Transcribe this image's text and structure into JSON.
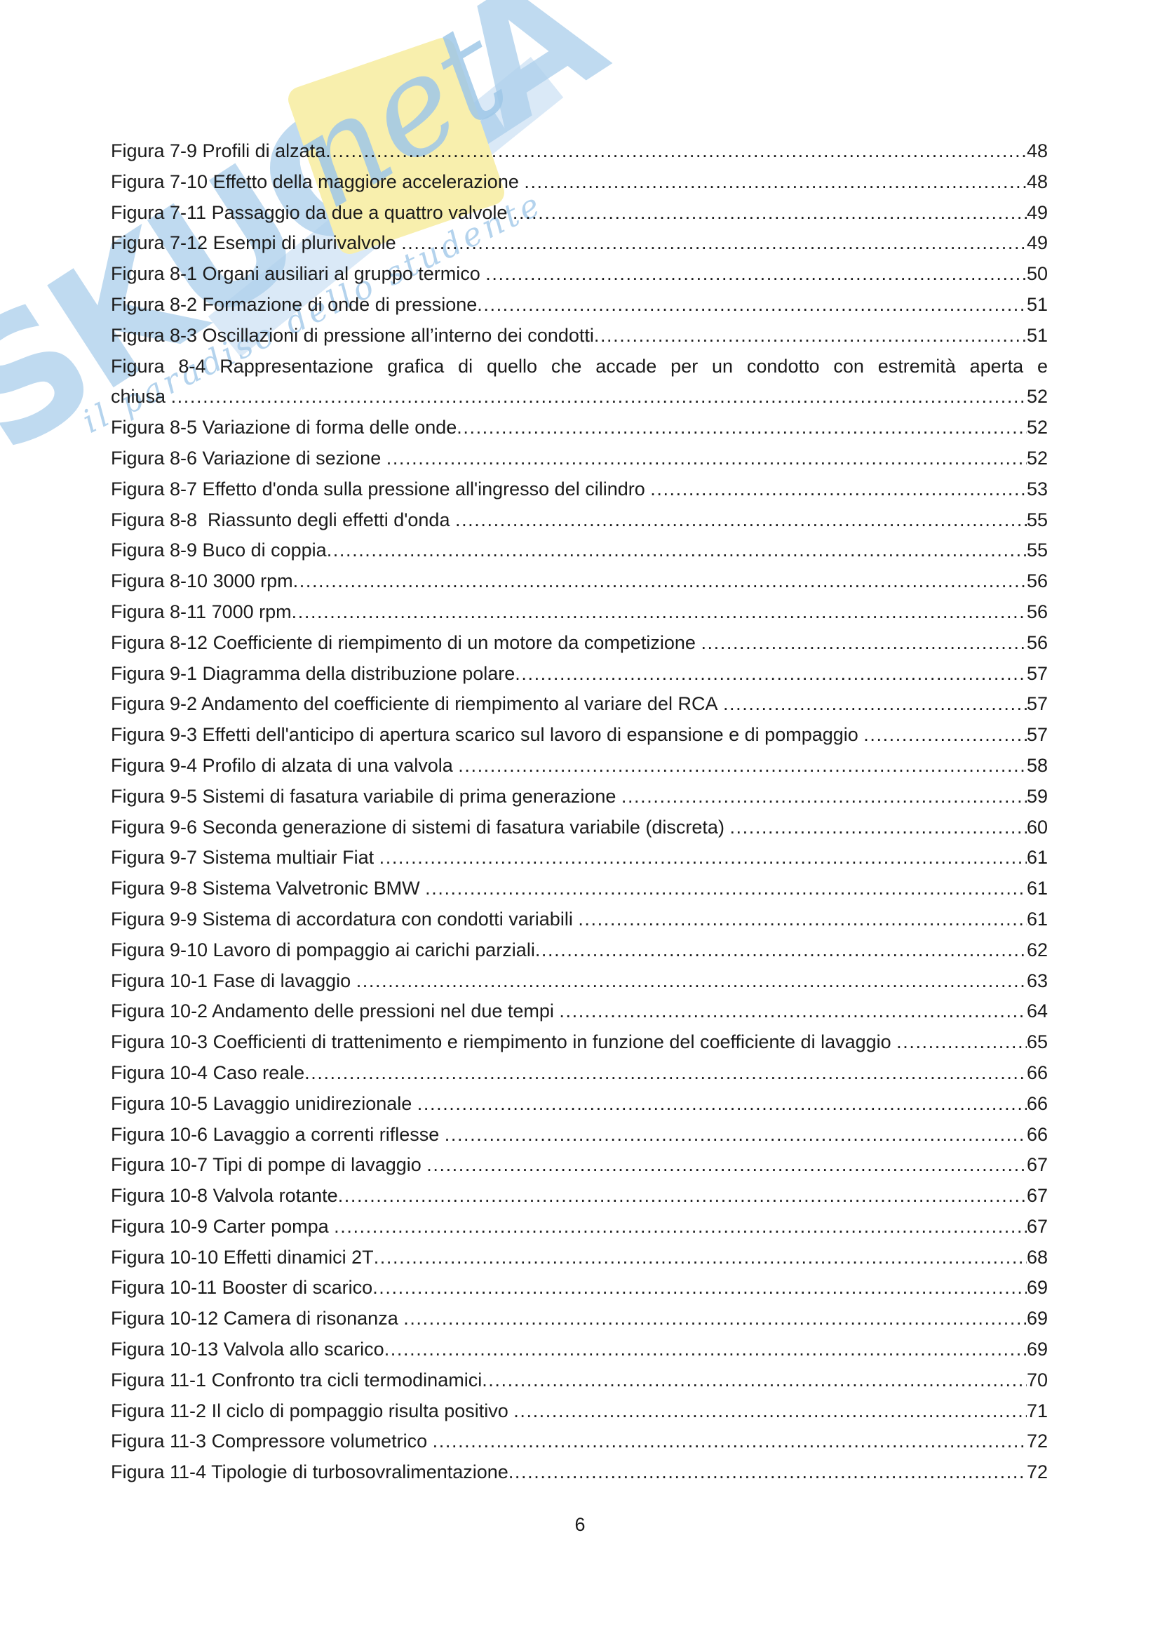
{
  "page": {
    "footer_number": "6"
  },
  "watermark": {
    "brand_main": "SKUOLA",
    "brand_suffix": "net",
    "tagline": "il paradiso dello studente",
    "blue": "#aed0ec",
    "yellow": "#f8efad"
  },
  "toc": {
    "entries": [
      {
        "label": "Figura 7-9 Profili di alzata",
        "page": "48"
      },
      {
        "label": "Figura 7-10 Effetto della maggiore accelerazione ",
        "page": "48"
      },
      {
        "label": "Figura 7-11 Passaggio da due a quattro valvole ",
        "page": "49"
      },
      {
        "label": "Figura 7-12 Esempi di plurivalvole ",
        "page": "49"
      },
      {
        "label": "Figura 8-1 Organi ausiliari al gruppo termico ",
        "page": "50"
      },
      {
        "label": "Figura 8-2 Formazione di onde di pressione",
        "page": "51"
      },
      {
        "label": "Figura 8-3 Oscillazioni di pressione all’interno dei condotti",
        "page": "51"
      },
      {
        "line1": "Figura 8-4 Rappresentazione grafica di quello che accade per un condotto con estremità aperta e",
        "label": "chiusa ",
        "page": "52"
      },
      {
        "label": "Figura 8-5 Variazione di forma delle onde",
        "page": "52"
      },
      {
        "label": "Figura 8-6 Variazione di sezione ",
        "page": "52"
      },
      {
        "label": "Figura 8-7 Effetto d'onda sulla pressione all'ingresso del cilindro ",
        "page": "53"
      },
      {
        "label": "Figura 8-8  Riassunto degli effetti d'onda ",
        "page": "55"
      },
      {
        "label": "Figura 8-9 Buco di coppia",
        "page": "55"
      },
      {
        "label": "Figura 8-10 3000 rpm",
        "page": "56"
      },
      {
        "label": "Figura 8-11 7000 rpm",
        "page": "56"
      },
      {
        "label": "Figura 8-12 Coefficiente di riempimento di un motore da competizione ",
        "page": "56"
      },
      {
        "label": "Figura 9-1 Diagramma della distribuzione polare",
        "page": "57"
      },
      {
        "label": "Figura 9-2 Andamento del coefficiente di riempimento al variare del RCA ",
        "page": "57"
      },
      {
        "label": "Figura 9-3 Effetti dell'anticipo di apertura scarico sul lavoro di espansione e di pompaggio ",
        "page": "57"
      },
      {
        "label": "Figura 9-4 Profilo di alzata di una valvola ",
        "page": "58"
      },
      {
        "label": "Figura 9-5 Sistemi di fasatura variabile di prima generazione ",
        "page": "59"
      },
      {
        "label": "Figura 9-6 Seconda generazione di sistemi di fasatura variabile (discreta) ",
        "page": "60"
      },
      {
        "label": "Figura 9-7 Sistema multiair Fiat ",
        "page": "61"
      },
      {
        "label": "Figura 9-8 Sistema Valvetronic BMW ",
        "page": "61"
      },
      {
        "label": "Figura 9-9 Sistema di accordatura con condotti variabili ",
        "page": "61"
      },
      {
        "label": "Figura 9-10 Lavoro di pompaggio ai carichi parziali",
        "page": "62"
      },
      {
        "label": "Figura 10-1 Fase di lavaggio ",
        "page": "63"
      },
      {
        "label": "Figura 10-2 Andamento delle pressioni nel due tempi ",
        "page": "64"
      },
      {
        "label": "Figura 10-3 Coefficienti di trattenimento e riempimento in funzione del coefficiente di lavaggio ",
        "page": "65"
      },
      {
        "label": "Figura 10-4 Caso reale",
        "page": "66"
      },
      {
        "label": "Figura 10-5 Lavaggio unidirezionale ",
        "page": "66"
      },
      {
        "label": "Figura 10-6 Lavaggio a correnti riflesse ",
        "page": "66"
      },
      {
        "label": "Figura 10-7 Tipi di pompe di lavaggio ",
        "page": "67"
      },
      {
        "label": "Figura 10-8 Valvola rotante",
        "page": "67"
      },
      {
        "label": "Figura 10-9 Carter pompa ",
        "page": "67"
      },
      {
        "label": "Figura 10-10 Effetti dinamici 2T",
        "page": "68"
      },
      {
        "label": "Figura 10-11 Booster di scarico",
        "page": "69"
      },
      {
        "label": "Figura 10-12 Camera di risonanza ",
        "page": "69"
      },
      {
        "label": "Figura 10-13 Valvola allo scarico",
        "page": "69"
      },
      {
        "label": "Figura 11-1 Confronto tra cicli termodinamici",
        "page": "70"
      },
      {
        "label": "Figura 11-2 Il ciclo di pompaggio risulta positivo ",
        "page": "71"
      },
      {
        "label": "Figura 11-3 Compressore volumetrico ",
        "page": "72"
      },
      {
        "label": "Figura 11-4 Tipologie di turbosovralimentazione",
        "page": "72"
      }
    ]
  }
}
